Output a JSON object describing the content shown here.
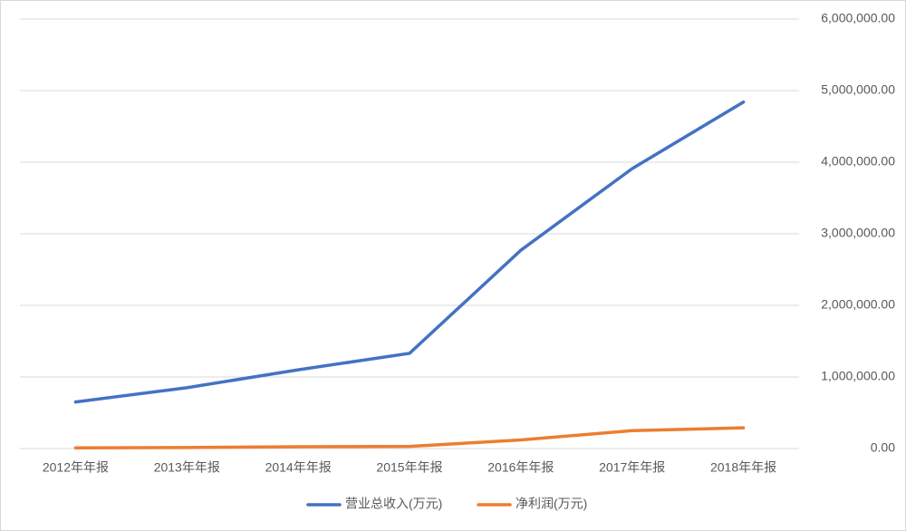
{
  "chart_data": {
    "type": "line",
    "categories": [
      "2012年年报",
      "2013年年报",
      "2014年年报",
      "2015年年报",
      "2016年年报",
      "2017年年报",
      "2018年年报"
    ],
    "series": [
      {
        "name": "营业总收入(万元)",
        "color": "#4472c4",
        "values": [
          650000,
          850000,
          1100000,
          1330000,
          2770000,
          3910000,
          4840000
        ]
      },
      {
        "name": "净利润(万元)",
        "color": "#ed7d31",
        "values": [
          10000,
          15000,
          25000,
          30000,
          120000,
          250000,
          290000
        ]
      }
    ],
    "ylim": [
      0,
      6000000
    ],
    "yticks": [
      {
        "value": 0,
        "label": "0.00"
      },
      {
        "value": 1000000,
        "label": "1,000,000.00"
      },
      {
        "value": 2000000,
        "label": "2,000,000.00"
      },
      {
        "value": 3000000,
        "label": "3,000,000.00"
      },
      {
        "value": 4000000,
        "label": "4,000,000.00"
      },
      {
        "value": 5000000,
        "label": "5,000,000.00"
      },
      {
        "value": 6000000,
        "label": "6,000,000.00"
      }
    ],
    "grid": true,
    "legend": "bottom"
  }
}
